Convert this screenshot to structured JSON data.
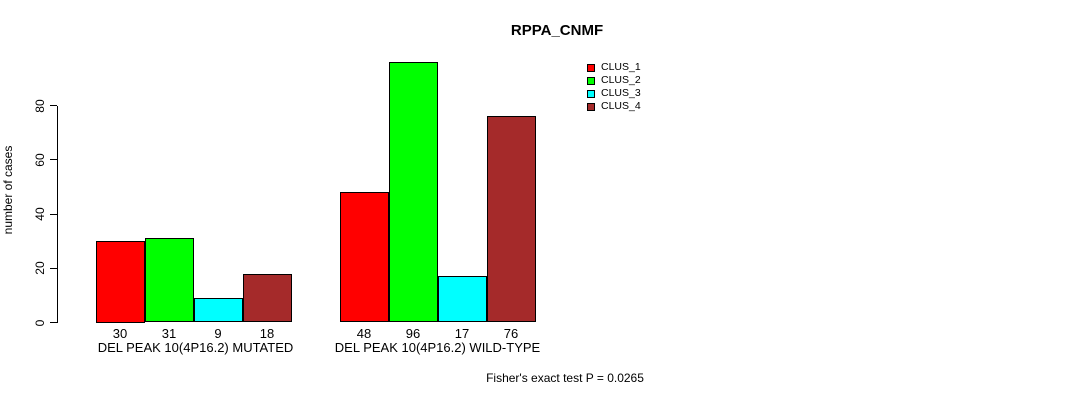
{
  "chart_data": {
    "type": "bar",
    "title": "RPPA_CNMF",
    "ylabel": "number of cases",
    "xlabel": "",
    "categories": [
      "DEL PEAK 10(4P16.2) MUTATED",
      "DEL PEAK 10(4P16.2) WILD-TYPE"
    ],
    "series": [
      {
        "name": "CLUS_1",
        "color": "#FF0000",
        "values": [
          30,
          48
        ]
      },
      {
        "name": "CLUS_2",
        "color": "#00FF00",
        "values": [
          31,
          96
        ]
      },
      {
        "name": "CLUS_3",
        "color": "#00FFFF",
        "values": [
          9,
          17
        ]
      },
      {
        "name": "CLUS_4",
        "color": "#A52A2A",
        "values": [
          18,
          76
        ]
      }
    ],
    "yticks": [
      0,
      20,
      40,
      60,
      80
    ],
    "ylim": [
      0,
      96
    ],
    "grid": false,
    "bar_value_labels_shown": true,
    "legend_position": "top-right",
    "legend_entries": [
      "CLUS_1",
      "CLUS_2",
      "CLUS_3",
      "CLUS_4"
    ],
    "annotation": "Fisher's exact test P = 0.0265"
  }
}
